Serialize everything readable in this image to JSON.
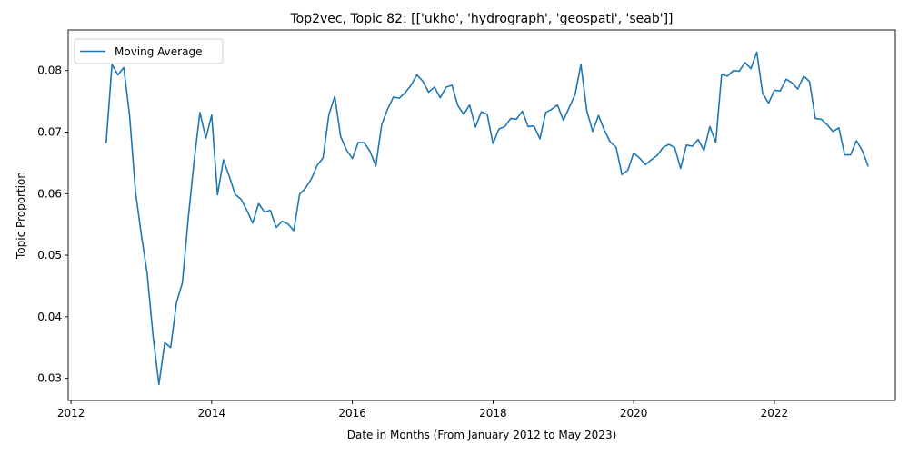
{
  "chart_data": {
    "type": "line",
    "title": "Top2vec, Topic 82: [['ukho', 'hydrograph', 'geospati', 'seab']]",
    "xlabel": "Date in Months (From January 2012 to May 2023)",
    "ylabel": "Topic Proportion",
    "xlim": [
      2011.96,
      2023.72
    ],
    "ylim": [
      0.0264,
      0.0866
    ],
    "x_ticks": [
      2012,
      2014,
      2016,
      2018,
      2020,
      2022
    ],
    "y_ticks": [
      0.03,
      0.04,
      0.05,
      0.06,
      0.07,
      0.08
    ],
    "y_tick_labels": [
      "0.03",
      "0.04",
      "0.05",
      "0.06",
      "0.07",
      "0.08"
    ],
    "legend": {
      "position": "upper-left",
      "entries": [
        "Moving Average"
      ]
    },
    "grid": false,
    "colors": {
      "series": "#1f77b4"
    },
    "series": [
      {
        "name": "Moving Average",
        "x": [
          2012.5,
          2012.583,
          2012.667,
          2012.75,
          2012.833,
          2012.917,
          2013.0,
          2013.083,
          2013.167,
          2013.25,
          2013.333,
          2013.417,
          2013.5,
          2013.583,
          2013.667,
          2013.75,
          2013.833,
          2013.917,
          2014.0,
          2014.083,
          2014.167,
          2014.25,
          2014.333,
          2014.417,
          2014.5,
          2014.583,
          2014.667,
          2014.75,
          2014.833,
          2014.917,
          2015.0,
          2015.083,
          2015.167,
          2015.25,
          2015.333,
          2015.417,
          2015.5,
          2015.583,
          2015.667,
          2015.75,
          2015.833,
          2015.917,
          2016.0,
          2016.083,
          2016.167,
          2016.25,
          2016.333,
          2016.417,
          2016.5,
          2016.583,
          2016.667,
          2016.75,
          2016.833,
          2016.917,
          2017.0,
          2017.083,
          2017.167,
          2017.25,
          2017.333,
          2017.417,
          2017.5,
          2017.583,
          2017.667,
          2017.75,
          2017.833,
          2017.917,
          2018.0,
          2018.083,
          2018.167,
          2018.25,
          2018.333,
          2018.417,
          2018.5,
          2018.583,
          2018.667,
          2018.75,
          2018.833,
          2018.917,
          2019.0,
          2019.083,
          2019.167,
          2019.25,
          2019.333,
          2019.417,
          2019.5,
          2019.583,
          2019.667,
          2019.75,
          2019.833,
          2019.917,
          2020.0,
          2020.083,
          2020.167,
          2020.25,
          2020.333,
          2020.417,
          2020.5,
          2020.583,
          2020.667,
          2020.75,
          2020.833,
          2020.917,
          2021.0,
          2021.083,
          2021.167,
          2021.25,
          2021.333,
          2021.417,
          2021.5,
          2021.583,
          2021.667,
          2021.75,
          2021.833,
          2021.917,
          2022.0,
          2022.083,
          2022.167,
          2022.25,
          2022.333,
          2022.417,
          2022.5,
          2022.583,
          2022.667,
          2022.75,
          2022.833,
          2022.917,
          2023.0,
          2023.083,
          2023.167,
          2023.25,
          2023.333
        ],
        "values": [
          0.0683,
          0.081,
          0.0793,
          0.0805,
          0.0727,
          0.0603,
          0.0533,
          0.047,
          0.0368,
          0.029,
          0.0358,
          0.035,
          0.0423,
          0.0455,
          0.056,
          0.0653,
          0.0732,
          0.069,
          0.0728,
          0.0598,
          0.0655,
          0.0628,
          0.0599,
          0.0591,
          0.0573,
          0.0552,
          0.0584,
          0.057,
          0.0573,
          0.0545,
          0.0555,
          0.0551,
          0.054,
          0.0599,
          0.0609,
          0.0624,
          0.0646,
          0.0658,
          0.0729,
          0.0758,
          0.0693,
          0.0671,
          0.0657,
          0.0683,
          0.0683,
          0.0669,
          0.0645,
          0.0712,
          0.0737,
          0.0757,
          0.0755,
          0.0764,
          0.0776,
          0.0793,
          0.0783,
          0.0765,
          0.0773,
          0.0756,
          0.0773,
          0.0776,
          0.0743,
          0.0729,
          0.0744,
          0.0708,
          0.0733,
          0.0729,
          0.0681,
          0.0705,
          0.0709,
          0.0722,
          0.0721,
          0.0734,
          0.0709,
          0.071,
          0.0689,
          0.0732,
          0.0737,
          0.0744,
          0.0719,
          0.074,
          0.0761,
          0.081,
          0.0735,
          0.0701,
          0.0727,
          0.0703,
          0.0684,
          0.0675,
          0.0631,
          0.0638,
          0.0666,
          0.0658,
          0.0647,
          0.0655,
          0.0662,
          0.0675,
          0.068,
          0.0675,
          0.0641,
          0.0679,
          0.0677,
          0.0688,
          0.067,
          0.0709,
          0.0683,
          0.0794,
          0.0791,
          0.08,
          0.0799,
          0.0813,
          0.0803,
          0.083,
          0.0763,
          0.0747,
          0.0768,
          0.0767,
          0.0786,
          0.078,
          0.077,
          0.0791,
          0.0782,
          0.0722,
          0.0721,
          0.0712,
          0.0701,
          0.0707,
          0.0663,
          0.0663,
          0.0686,
          0.067,
          0.0645
        ]
      }
    ]
  }
}
